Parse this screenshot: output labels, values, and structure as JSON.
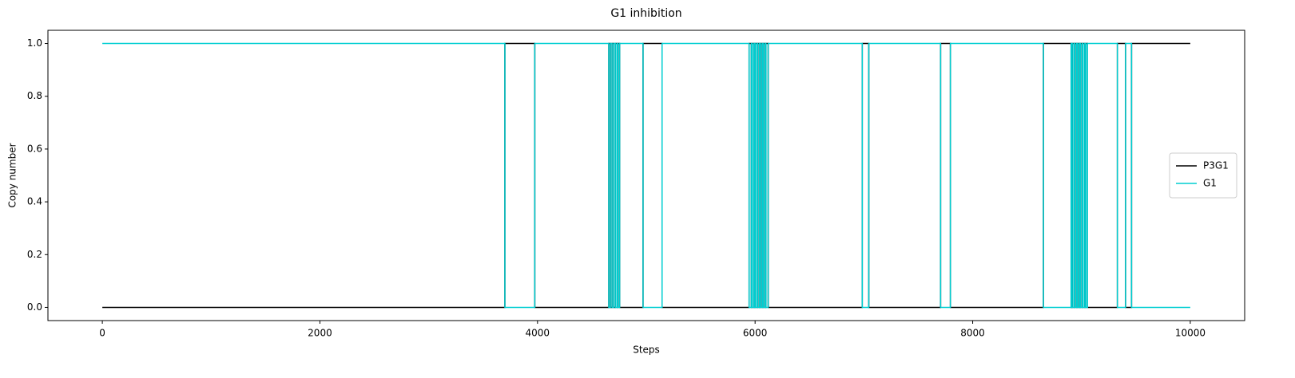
{
  "chart_data": {
    "type": "line",
    "title": "G1 inhibition",
    "x_label": "Steps",
    "y_label": "Copy number",
    "x": [
      0,
      3700,
      3700,
      3975,
      3975,
      4655,
      4655,
      4670,
      4670,
      4685,
      4685,
      4700,
      4700,
      4715,
      4715,
      4730,
      4730,
      4740,
      4740,
      4755,
      4755,
      4970,
      4970,
      5145,
      5145,
      5945,
      5945,
      5965,
      5965,
      5975,
      5975,
      5990,
      5990,
      6000,
      6000,
      6015,
      6015,
      6025,
      6025,
      6040,
      6040,
      6050,
      6050,
      6065,
      6065,
      6075,
      6075,
      6090,
      6090,
      6100,
      6100,
      6120,
      6120,
      6985,
      6985,
      7045,
      7045,
      7705,
      7705,
      7795,
      7795,
      8650,
      8650,
      8905,
      8905,
      8915,
      8915,
      8930,
      8930,
      8940,
      8940,
      8955,
      8955,
      8965,
      8965,
      8980,
      8980,
      8990,
      8990,
      9005,
      9005,
      9015,
      9015,
      9030,
      9030,
      9040,
      9040,
      9055,
      9055,
      9330,
      9330,
      9405,
      9405,
      9460,
      9460,
      10000
    ],
    "series": [
      {
        "name": "P3G1",
        "color": "#000000",
        "values": [
          0,
          0,
          1,
          1,
          0,
          0,
          1,
          1,
          0,
          0,
          1,
          1,
          0,
          0,
          1,
          1,
          0,
          0,
          1,
          1,
          0,
          0,
          1,
          1,
          0,
          0,
          1,
          1,
          0,
          0,
          1,
          1,
          0,
          0,
          1,
          1,
          0,
          0,
          1,
          1,
          0,
          0,
          1,
          1,
          0,
          0,
          1,
          1,
          0,
          0,
          1,
          1,
          0,
          0,
          1,
          1,
          0,
          0,
          1,
          1,
          0,
          0,
          1,
          1,
          0,
          0,
          1,
          1,
          0,
          0,
          1,
          1,
          0,
          0,
          1,
          1,
          0,
          0,
          1,
          1,
          0,
          0,
          1,
          1,
          0,
          0,
          1,
          1,
          0,
          0,
          1,
          1,
          0,
          0,
          1,
          1
        ]
      },
      {
        "name": "G1",
        "color": "#00ced1",
        "values": [
          1,
          1,
          0,
          0,
          1,
          1,
          0,
          0,
          1,
          1,
          0,
          0,
          1,
          1,
          0,
          0,
          1,
          1,
          0,
          0,
          1,
          1,
          0,
          0,
          1,
          1,
          0,
          0,
          1,
          1,
          0,
          0,
          1,
          1,
          0,
          0,
          1,
          1,
          0,
          0,
          1,
          1,
          0,
          0,
          1,
          1,
          0,
          0,
          1,
          1,
          0,
          0,
          1,
          1,
          0,
          0,
          1,
          1,
          0,
          0,
          1,
          1,
          0,
          0,
          1,
          1,
          0,
          0,
          1,
          1,
          0,
          0,
          1,
          1,
          0,
          0,
          1,
          1,
          0,
          0,
          1,
          1,
          0,
          0,
          1,
          1,
          0,
          0,
          1,
          1,
          0,
          0,
          1,
          1,
          0,
          0
        ]
      }
    ],
    "xlim": [
      -500,
      10500
    ],
    "ylim": [
      -0.05,
      1.05
    ],
    "xticks": [
      0,
      2000,
      4000,
      6000,
      8000,
      10000
    ],
    "yticks": [
      {
        "value": 0,
        "label": "0.0"
      },
      0.2,
      0.4,
      0.6,
      0.8,
      {
        "value": 1,
        "label": "1.0"
      }
    ],
    "legend": "center right"
  }
}
